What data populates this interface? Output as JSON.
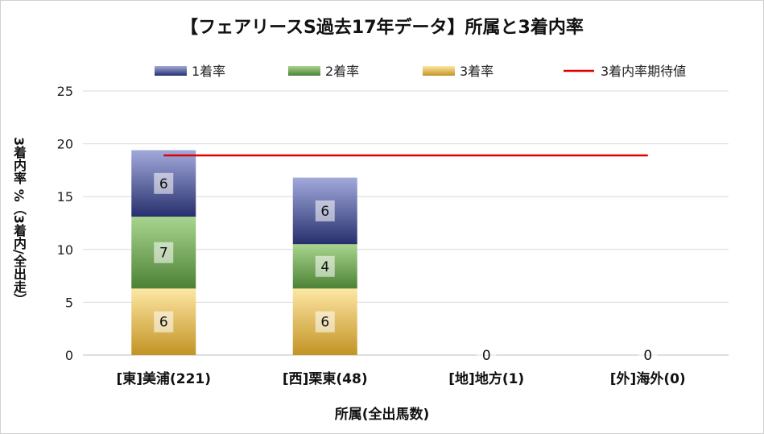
{
  "chart_data": {
    "type": "bar",
    "stacked": true,
    "title": "【フェアリースS過去17年データ】所属と3着内率",
    "xlabel": "所属(全出馬数)",
    "ylabel": "3着内率 %（3着内/全出走）",
    "ylim": [
      0,
      25
    ],
    "yticks": [
      0,
      5,
      10,
      15,
      20,
      25
    ],
    "grid": true,
    "legend_position": "top",
    "categories": [
      "[東]美浦(221)",
      "[西]栗東(48)",
      "[地]地方(1)",
      "[外]海外(0)"
    ],
    "series": [
      {
        "name": "3着率",
        "values": [
          6.3,
          6.3,
          0,
          0
        ],
        "labels": [
          "6",
          "6",
          "0",
          "0"
        ],
        "color": "#e3b443"
      },
      {
        "name": "2着率",
        "values": [
          6.8,
          4.2,
          0,
          0
        ],
        "labels": [
          "7",
          "4",
          "",
          ""
        ],
        "color": "#70a852"
      },
      {
        "name": "1着率",
        "values": [
          6.3,
          6.3,
          0,
          0
        ],
        "labels": [
          "6",
          "6",
          "",
          ""
        ],
        "color": "#5a66ad"
      }
    ],
    "reference_line": {
      "name": "3着内率期待値",
      "value": 18.9,
      "color": "#e00000"
    },
    "legend_order": [
      "1着率",
      "2着率",
      "3着率",
      "3着内率期待値"
    ]
  }
}
